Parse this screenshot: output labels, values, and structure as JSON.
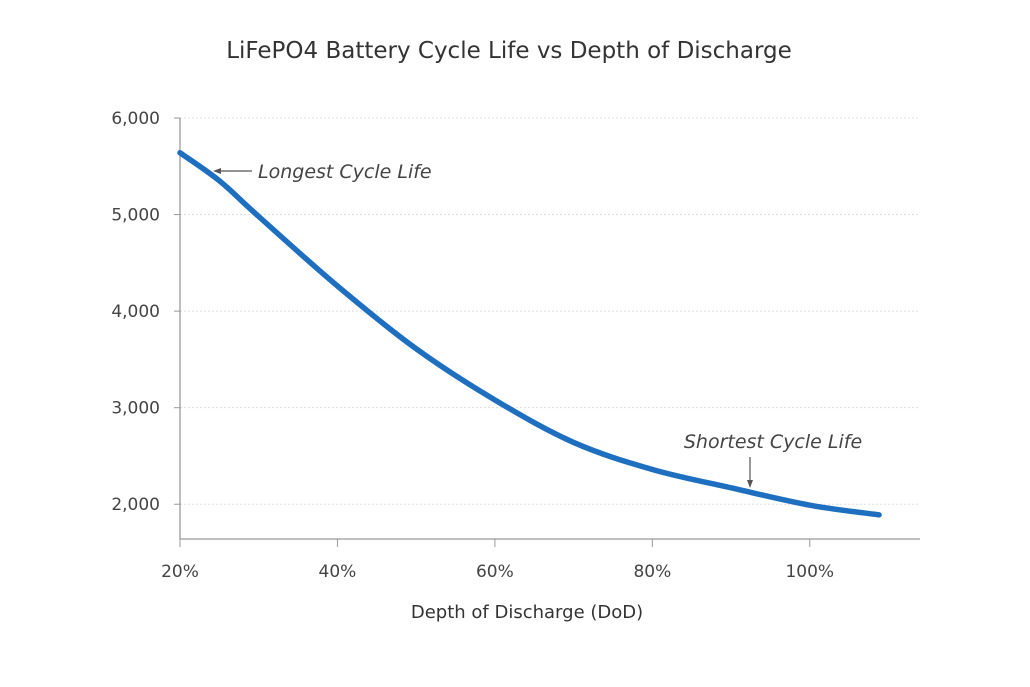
{
  "chart_data": {
    "type": "line",
    "title": "LiFePO4 Battery Cycle Life vs Depth of Discharge",
    "xlabel": "Depth of Discharge (DoD)",
    "ylabel": "",
    "xlim": [
      20,
      114
    ],
    "ylim": [
      1640,
      6000
    ],
    "x_ticks": [
      20,
      40,
      60,
      80,
      100
    ],
    "x_tick_labels": [
      "20%",
      "40%",
      "60%",
      "80%",
      "100%"
    ],
    "y_ticks": [
      2000,
      3000,
      4000,
      5000,
      6000
    ],
    "y_tick_labels": [
      "2,000",
      "3,000",
      "4,000",
      "5,000",
      "6,000"
    ],
    "grid": "horizontal dotted",
    "line_color": "#1f6fc1",
    "series": [
      {
        "x": [
          20,
          25,
          30,
          40,
          50,
          60,
          70,
          80,
          90,
          100,
          108.8
        ],
        "y": [
          5640,
          5350,
          4980,
          4260,
          3610,
          3080,
          2640,
          2360,
          2170,
          1990,
          1890
        ]
      }
    ],
    "annotations": [
      {
        "text": "Longest Cycle Life",
        "x": 20.5,
        "y": 5600,
        "arrow": "left"
      },
      {
        "text": "Shortest Cycle Life",
        "x": 92.6,
        "y": 2130,
        "arrow": "down"
      }
    ]
  }
}
